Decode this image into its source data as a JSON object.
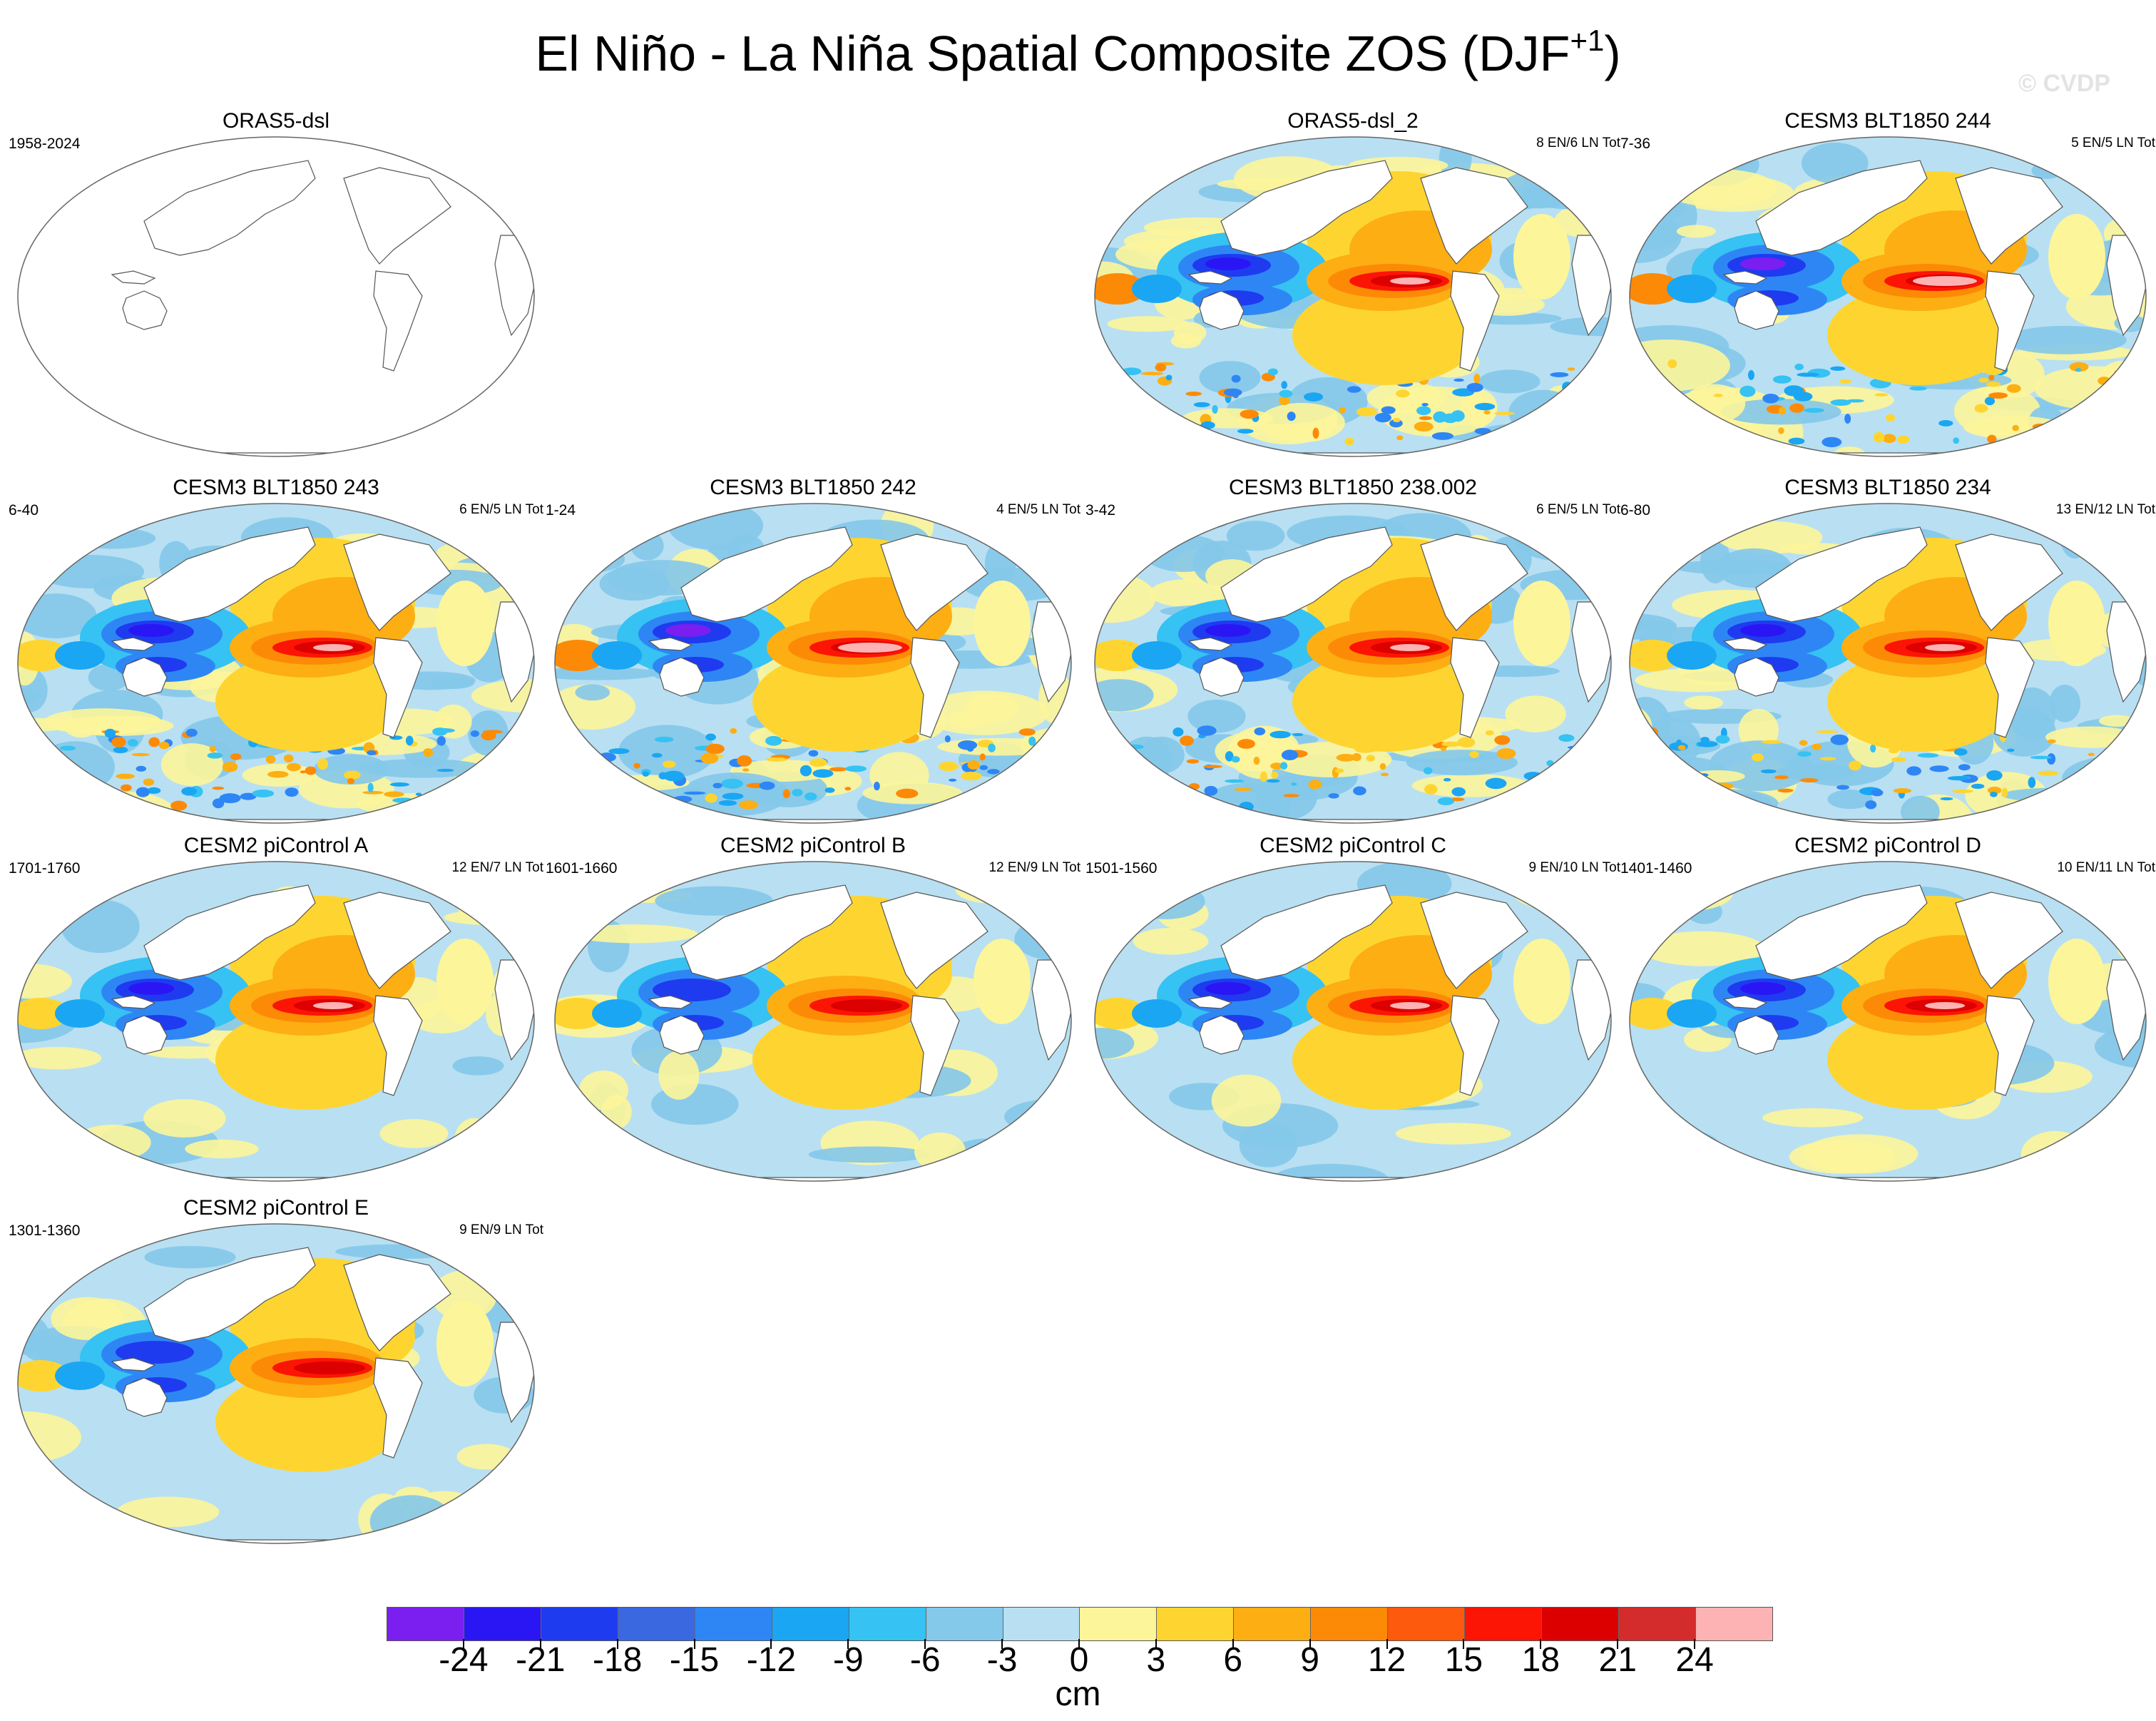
{
  "title": {
    "main": "El Niño - La Niña Spatial Composite ZOS (DJF",
    "superscript": "+1",
    "close": ")"
  },
  "watermark": "© CVDP",
  "panels": [
    {
      "title": "ORAS5-dsl",
      "left_label": "1958-2024",
      "right_label": "",
      "filled": false,
      "style": "none",
      "pos": "r1c1"
    },
    {
      "title": "ORAS5-dsl_2",
      "left_label": "",
      "right_label": "8 EN/6 LN Tot",
      "filled": true,
      "style": "obs",
      "pos": "r1c3"
    },
    {
      "title": "CESM3 BLT1850 244",
      "left_label": "7-36",
      "right_label": "5 EN/5 LN Tot",
      "filled": true,
      "style": "strong",
      "pos": "r1c4"
    },
    {
      "title": "CESM3 BLT1850 243",
      "left_label": "6-40",
      "right_label": "6 EN/5 LN Tot",
      "filled": true,
      "style": "model",
      "pos": "r2c1"
    },
    {
      "title": "CESM3 BLT1850 242",
      "left_label": "1-24",
      "right_label": "4 EN/5 LN Tot",
      "filled": true,
      "style": "strong",
      "pos": "r2c2"
    },
    {
      "title": "CESM3 BLT1850 238.002",
      "left_label": "3-42",
      "right_label": "6 EN/5 LN Tot",
      "filled": true,
      "style": "model",
      "pos": "r2c3"
    },
    {
      "title": "CESM3 BLT1850 234",
      "left_label": "6-80",
      "right_label": "13 EN/12 LN Tot",
      "filled": true,
      "style": "model",
      "pos": "r2c4"
    },
    {
      "title": "CESM2 piControl A",
      "left_label": "1701-1760",
      "right_label": "12 EN/7 LN Tot",
      "filled": true,
      "style": "smooth",
      "pos": "r3c1"
    },
    {
      "title": "CESM2 piControl B",
      "left_label": "1601-1660",
      "right_label": "12 EN/9 LN Tot",
      "filled": true,
      "style": "weak",
      "pos": "r3c2"
    },
    {
      "title": "CESM2 piControl C",
      "left_label": "1501-1560",
      "right_label": "9 EN/10 LN Tot",
      "filled": true,
      "style": "smooth",
      "pos": "r3c3"
    },
    {
      "title": "CESM2 piControl D",
      "left_label": "1401-1460",
      "right_label": "10 EN/11 LN Tot",
      "filled": true,
      "style": "smooth",
      "pos": "r3c4"
    },
    {
      "title": "CESM2 piControl E",
      "left_label": "1301-1360",
      "right_label": "9 EN/9 LN Tot",
      "filled": true,
      "style": "weak",
      "pos": "r4c1"
    }
  ],
  "colorbar": {
    "colors": [
      "#7a1ff0",
      "#2a16f5",
      "#1e3bf0",
      "#3a68e0",
      "#2e86f5",
      "#1aa6f2",
      "#36c2f2",
      "#84c8ea",
      "#b8e0f2",
      "#fdf59a",
      "#fed530",
      "#fdae12",
      "#fd8a06",
      "#fd5a0d",
      "#fc1405",
      "#dc0000",
      "#d42c2c",
      "#fdb3b3"
    ],
    "labels": [
      "-24",
      "-21",
      "-18",
      "-15",
      "-12",
      "-9",
      "-6",
      "-3",
      "0",
      "3",
      "6",
      "9",
      "12",
      "15",
      "18",
      "21",
      "24"
    ],
    "units": "cm"
  }
}
